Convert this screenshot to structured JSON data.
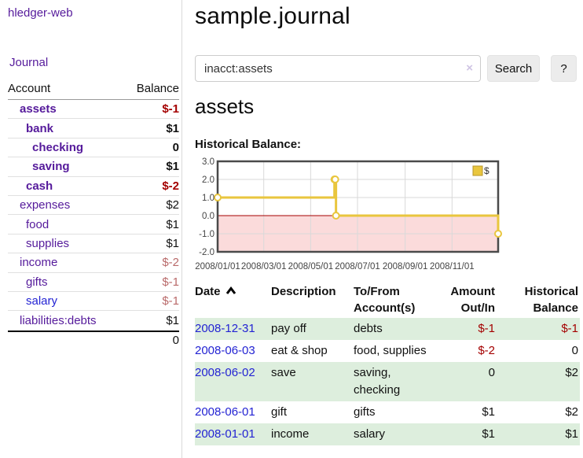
{
  "app": {
    "brand": "hledger-web",
    "nav_journal": "Journal"
  },
  "sidebar": {
    "account_header": "Account",
    "balance_header": "Balance",
    "accounts": [
      {
        "name": "assets",
        "balance": "$-1",
        "depth": 0,
        "bold": true,
        "neg": "strong"
      },
      {
        "name": "bank",
        "balance": "$1",
        "depth": 1,
        "bold": true,
        "neg": "none"
      },
      {
        "name": "checking",
        "balance": "0",
        "depth": 2,
        "bold": true,
        "neg": "none"
      },
      {
        "name": "saving",
        "balance": "$1",
        "depth": 2,
        "bold": true,
        "neg": "none"
      },
      {
        "name": "cash",
        "balance": "$-2",
        "depth": 1,
        "bold": true,
        "neg": "strong"
      },
      {
        "name": "expenses",
        "balance": "$2",
        "depth": 0,
        "bold": false,
        "neg": "none"
      },
      {
        "name": "food",
        "balance": "$1",
        "depth": 1,
        "bold": false,
        "neg": "none"
      },
      {
        "name": "supplies",
        "balance": "$1",
        "depth": 1,
        "bold": false,
        "neg": "none"
      },
      {
        "name": "income",
        "balance": "$-2",
        "depth": 0,
        "bold": false,
        "neg": "muted"
      },
      {
        "name": "gifts",
        "balance": "$-1",
        "depth": 1,
        "bold": false,
        "neg": "muted"
      },
      {
        "name": "salary",
        "balance": "$-1",
        "depth": 1,
        "bold": false,
        "neg": "muted",
        "link": "blue"
      },
      {
        "name": "liabilities:debts",
        "balance": "$1",
        "depth": 0,
        "bold": false,
        "neg": "none"
      }
    ],
    "total": "0"
  },
  "header": {
    "title": "sample.journal"
  },
  "search": {
    "value": "inacct:assets",
    "clear_icon": "×",
    "button_label": "Search",
    "help_label": "?"
  },
  "register": {
    "heading": "assets",
    "chart_title": "Historical Balance:"
  },
  "chart_data": {
    "type": "line",
    "step": true,
    "title": "Historical Balance:",
    "legend": "$",
    "legend_position": "top-right",
    "series": [
      {
        "name": "$",
        "points": [
          [
            "2008-01-01",
            1
          ],
          [
            "2008-06-01",
            2
          ],
          [
            "2008-06-02",
            2
          ],
          [
            "2008-06-03",
            0
          ],
          [
            "2008-12-31",
            -1
          ]
        ]
      }
    ],
    "xlim": [
      "2008-01-01",
      "2008-12-31"
    ],
    "ylim": [
      -2,
      3
    ],
    "y_ticks": [
      "3.0",
      "2.0",
      "1.0",
      "0.0",
      "-1.0",
      "-2.0"
    ],
    "x_ticks": [
      {
        "label": "2008/01/01",
        "date": "2008-01-01"
      },
      {
        "label": "2008/03/01",
        "date": "2008-03-01"
      },
      {
        "label": "2008/05/01",
        "date": "2008-05-01"
      },
      {
        "label": "2008/07/01",
        "date": "2008-07-01"
      },
      {
        "label": "2008/09/01",
        "date": "2008-09-01"
      },
      {
        "label": "2008/11/01",
        "date": "2008-11-01"
      }
    ],
    "grid": true,
    "colors": {
      "line": "#e9c63e",
      "legend_border": "#b8952a",
      "negative_fill": "#fbdbdb",
      "zero_line": "#a40000",
      "border": "#4a4a4a",
      "gridline": "#d9d9d9",
      "axis_text": "#444444"
    }
  },
  "table": {
    "headers": {
      "date": "Date",
      "description": "Description",
      "accounts_l1": "To/From",
      "accounts_l2": "Account(s)",
      "amount_l1": "Amount",
      "amount_l2": "Out/In",
      "balance_l1": "Historical",
      "balance_l2": "Balance"
    },
    "sort": {
      "column": "date",
      "direction": "asc"
    },
    "rows": [
      {
        "date": "2008-12-31",
        "description": "pay off",
        "accounts": "debts",
        "amount": "$-1",
        "amount_neg": true,
        "balance": "$-1",
        "balance_neg": true
      },
      {
        "date": "2008-06-03",
        "description": "eat & shop",
        "accounts": "food, supplies",
        "amount": "$-2",
        "amount_neg": true,
        "balance": "0",
        "balance_neg": false
      },
      {
        "date": "2008-06-02",
        "description": "save",
        "accounts": "saving, checking",
        "amount": "0",
        "amount_neg": false,
        "balance": "$2",
        "balance_neg": false
      },
      {
        "date": "2008-06-01",
        "description": "gift",
        "accounts": "gifts",
        "amount": "$1",
        "amount_neg": false,
        "balance": "$2",
        "balance_neg": false
      },
      {
        "date": "2008-01-01",
        "description": "income",
        "accounts": "salary",
        "amount": "$1",
        "amount_neg": false,
        "balance": "$1",
        "balance_neg": false
      }
    ]
  },
  "colors": {
    "link_purple": "#551a9b",
    "link_blue": "#2323d3",
    "neg_strong": "#a40000",
    "neg_muted": "#b96a6a",
    "row_green": "#ddeedd"
  }
}
